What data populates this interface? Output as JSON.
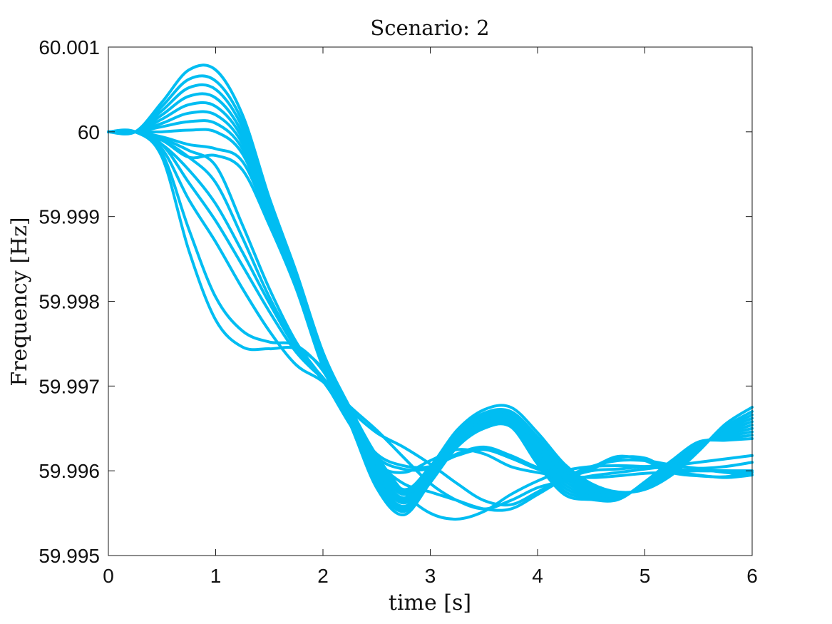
{
  "chart_data": {
    "type": "line",
    "title": "Scenario: 2",
    "xlabel": "time [s]",
    "ylabel": "Frequency [Hz]",
    "xlim": [
      0,
      6
    ],
    "ylim": [
      59.995,
      60.001
    ],
    "xticks": [
      0,
      1,
      2,
      3,
      4,
      5,
      6
    ],
    "xtick_labels": [
      "0",
      "1",
      "2",
      "3",
      "4",
      "5",
      "6"
    ],
    "yticks": [
      59.995,
      59.996,
      59.997,
      59.998,
      59.999,
      60,
      60.001
    ],
    "ytick_labels": [
      "59.995",
      "59.996",
      "59.997",
      "59.998",
      "59.999",
      "60",
      "60.001"
    ],
    "grid": false,
    "legend": "none",
    "line_color": "#00bdf2",
    "x": [
      0,
      0.25,
      0.5,
      0.75,
      1,
      1.25,
      1.5,
      1.75,
      2,
      2.25,
      2.5,
      2.75,
      3,
      3.25,
      3.5,
      3.75,
      4,
      4.25,
      4.5,
      4.75,
      5,
      5.25,
      5.5,
      5.75,
      6
    ],
    "series": [
      {
        "values": [
          60.0,
          60.0,
          60.00035,
          60.00073,
          60.00073,
          60.0002,
          59.99922,
          59.99835,
          59.9974,
          59.99675,
          59.99618,
          59.99578,
          59.99605,
          59.99648,
          59.99672,
          59.99675,
          59.99645,
          59.99608,
          59.99585,
          59.99575,
          59.99578,
          59.99595,
          59.99623,
          59.99655,
          59.99675
        ]
      },
      {
        "values": [
          60.0,
          60.0,
          60.0003,
          60.00062,
          60.0006,
          60.00012,
          59.99918,
          59.99832,
          59.99738,
          59.99672,
          59.99612,
          59.99575,
          59.99603,
          59.99645,
          59.99668,
          59.9967,
          59.9964,
          59.99604,
          59.99582,
          59.99574,
          59.99579,
          59.99597,
          59.99625,
          59.99652,
          59.9967
        ]
      },
      {
        "values": [
          60.0,
          60.0,
          60.00025,
          60.00052,
          60.0005,
          60.00005,
          59.99915,
          59.9983,
          59.99736,
          59.9967,
          59.99608,
          59.99572,
          59.996,
          59.99642,
          59.99665,
          59.99667,
          59.99636,
          59.996,
          59.9958,
          59.99573,
          59.9958,
          59.99598,
          59.99626,
          59.9965,
          59.99666
        ]
      },
      {
        "values": [
          60.0,
          60.0,
          60.0002,
          60.00042,
          60.0004,
          59.99998,
          59.99912,
          59.99828,
          59.99734,
          59.99668,
          59.99604,
          59.99568,
          59.99598,
          59.9964,
          59.99662,
          59.99664,
          59.99632,
          59.99596,
          59.99578,
          59.99572,
          59.99581,
          59.996,
          59.99627,
          59.99648,
          59.99662
        ]
      },
      {
        "values": [
          60.0,
          60.0,
          60.00015,
          60.00032,
          60.0003,
          59.99992,
          59.99908,
          59.99826,
          59.99732,
          59.99666,
          59.996,
          59.99565,
          59.99596,
          59.99638,
          59.9966,
          59.99662,
          59.99628,
          59.99592,
          59.99576,
          59.99571,
          59.99582,
          59.99602,
          59.99628,
          59.99646,
          59.99658
        ]
      },
      {
        "values": [
          60.0,
          60.0,
          60.0001,
          60.00022,
          60.0002,
          59.99986,
          59.99905,
          59.99824,
          59.9973,
          59.99664,
          59.99596,
          59.99562,
          59.99594,
          59.99636,
          59.99658,
          59.9966,
          59.99624,
          59.99588,
          59.99574,
          59.9957,
          59.99583,
          59.99604,
          59.9963,
          59.99644,
          59.99654
        ]
      },
      {
        "values": [
          60.0,
          60.0,
          60.00006,
          60.00012,
          60.0001,
          59.9998,
          59.99902,
          59.99822,
          59.99728,
          59.99662,
          59.99592,
          59.99558,
          59.99592,
          59.99634,
          59.99656,
          59.99658,
          59.9962,
          59.99584,
          59.99572,
          59.99569,
          59.99584,
          59.99606,
          59.99631,
          59.99642,
          59.9965
        ]
      },
      {
        "values": [
          60.0,
          60.0,
          60.0,
          60.00002,
          60.0,
          59.99974,
          59.99898,
          59.9982,
          59.99726,
          59.9966,
          59.99588,
          59.99555,
          59.9959,
          59.99632,
          59.99654,
          59.99656,
          59.99616,
          59.9958,
          59.9957,
          59.99568,
          59.99585,
          59.99608,
          59.99632,
          59.9964,
          59.99646
        ]
      },
      {
        "values": [
          60.0,
          60.0,
          59.99994,
          59.99985,
          59.9998,
          59.99965,
          59.99895,
          59.99818,
          59.99724,
          59.99658,
          59.99584,
          59.99552,
          59.99588,
          59.9963,
          59.99652,
          59.99654,
          59.99612,
          59.99576,
          59.99568,
          59.99567,
          59.99586,
          59.9961,
          59.99633,
          59.99638,
          59.99642
        ]
      },
      {
        "values": [
          60.0,
          60.0,
          59.9999,
          59.9997,
          59.99972,
          59.99955,
          59.9989,
          59.99815,
          59.99722,
          59.99656,
          59.9958,
          59.99548,
          59.99586,
          59.99628,
          59.9965,
          59.99652,
          59.99608,
          59.99572,
          59.99566,
          59.99566,
          59.99587,
          59.99612,
          59.99634,
          59.99636,
          59.99638
        ]
      },
      {
        "values": [
          60.0,
          60.0,
          59.9997,
          59.9986,
          59.99778,
          59.99746,
          59.99744,
          59.99744,
          59.9972,
          59.99662,
          59.9962,
          59.99606,
          59.99605,
          59.99618,
          59.99625,
          59.99615,
          59.99602,
          59.99595,
          59.99602,
          59.99615,
          59.99615,
          59.996,
          59.99595,
          59.99592,
          59.99595
        ]
      },
      {
        "values": [
          60.0,
          60.0,
          59.99975,
          59.99885,
          59.99805,
          59.99765,
          59.99752,
          59.99748,
          59.99718,
          59.9966,
          59.99616,
          59.99602,
          59.99603,
          59.9962,
          59.99628,
          59.99618,
          59.99604,
          59.99596,
          59.99604,
          59.99617,
          59.99612,
          59.99598,
          59.99594,
          59.99593,
          59.99598
        ]
      },
      {
        "values": [
          60.0,
          60.0,
          59.9998,
          59.9992,
          59.9987,
          59.99815,
          59.99765,
          59.99725,
          59.99705,
          59.99672,
          59.99645,
          59.99628,
          59.99608,
          59.99585,
          59.99565,
          59.9956,
          59.99575,
          59.99592,
          59.99605,
          59.99612,
          59.99612,
          59.99607,
          59.99603,
          59.99605,
          59.9961
        ]
      },
      {
        "values": [
          60.0,
          60.0,
          59.99985,
          59.9994,
          59.99895,
          59.99842,
          59.99788,
          59.9974,
          59.99708,
          59.99676,
          59.99648,
          59.99616,
          59.99585,
          59.99565,
          59.99555,
          59.99565,
          59.9958,
          59.99588,
          59.99594,
          59.99598,
          59.99602,
          59.99606,
          59.9961,
          59.99614,
          59.99618
        ]
      },
      {
        "values": [
          60.0,
          60.0,
          59.99985,
          59.99955,
          59.99915,
          59.99858,
          59.99798,
          59.99745,
          59.9971,
          59.99668,
          59.99618,
          59.99575,
          59.9955,
          59.99543,
          59.99552,
          59.99572,
          59.99588,
          59.996,
          59.99605,
          59.99606,
          59.99605,
          59.99602,
          59.996,
          59.996,
          59.996
        ]
      },
      {
        "values": [
          60.0,
          60.0,
          59.9999,
          59.9997,
          59.9994,
          59.99875,
          59.99805,
          59.99748,
          59.99706,
          59.9966,
          59.99612,
          59.99585,
          59.99575,
          59.99565,
          59.99555,
          59.99555,
          59.99572,
          59.9959,
          59.996,
          59.99602,
          59.99605,
          59.99606,
          59.99602,
          59.99598,
          59.99595
        ]
      },
      {
        "values": [
          60.0,
          60.0,
          59.99992,
          59.99978,
          59.9996,
          59.9989,
          59.99815,
          59.99752,
          59.99708,
          59.99655,
          59.99608,
          59.99598,
          59.99612,
          59.99625,
          59.9962,
          59.99605,
          59.99598,
          59.99594,
          59.99592,
          59.99594,
          59.99597,
          59.99598,
          59.996,
          59.996,
          59.99598
        ]
      }
    ]
  }
}
